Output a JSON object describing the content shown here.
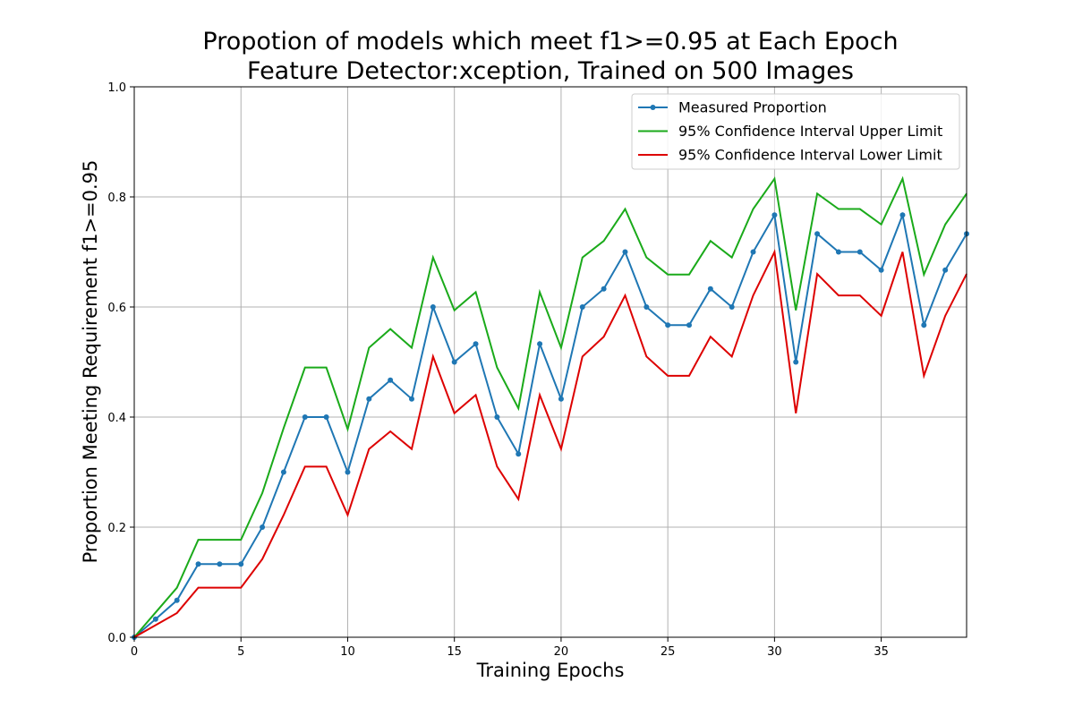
{
  "chart_data": {
    "type": "line",
    "title": "Propotion of models which meet f1>=0.95 at Each Epoch",
    "subtitle": "Feature Detector:xception, Trained on 500 Images",
    "xlabel": "Training Epochs",
    "ylabel": "Proportion Meeting Requirement f1>=0.95",
    "xlim": [
      0,
      39
    ],
    "ylim": [
      0,
      1.0
    ],
    "xticks": [
      0,
      5,
      10,
      15,
      20,
      25,
      30,
      35
    ],
    "xtick_labels": [
      "0",
      "5",
      "10",
      "15",
      "20",
      "25",
      "30",
      "35"
    ],
    "yticks": [
      0.0,
      0.2,
      0.4,
      0.6,
      0.8,
      1.0
    ],
    "ytick_labels": [
      "0.0",
      "0.2",
      "0.4",
      "0.6",
      "0.8",
      "1.0"
    ],
    "grid": true,
    "legend_position": "top-right",
    "x": [
      0,
      1,
      2,
      3,
      4,
      5,
      6,
      7,
      8,
      9,
      10,
      11,
      12,
      13,
      14,
      15,
      16,
      17,
      18,
      19,
      20,
      21,
      22,
      23,
      24,
      25,
      26,
      27,
      28,
      29,
      30,
      31,
      32,
      33,
      34,
      35,
      36,
      37,
      38,
      39
    ],
    "series": [
      {
        "name": "Measured Proportion",
        "color": "#1f77b4",
        "marker": true,
        "values": [
          0.0,
          0.033,
          0.067,
          0.133,
          0.133,
          0.133,
          0.2,
          0.3,
          0.4,
          0.4,
          0.3,
          0.433,
          0.467,
          0.433,
          0.6,
          0.5,
          0.533,
          0.4,
          0.333,
          0.533,
          0.433,
          0.6,
          0.633,
          0.7,
          0.6,
          0.567,
          0.567,
          0.633,
          0.6,
          0.7,
          0.767,
          0.5,
          0.733,
          0.7,
          0.7,
          0.667,
          0.767,
          0.567,
          0.667,
          0.733
        ]
      },
      {
        "name": "95% Confidence Interval Upper Limit",
        "color": "#1aaa1a",
        "marker": false,
        "values": [
          0.0,
          0.045,
          0.09,
          0.177,
          0.177,
          0.177,
          0.262,
          0.38,
          0.49,
          0.49,
          0.378,
          0.526,
          0.56,
          0.526,
          0.69,
          0.594,
          0.627,
          0.49,
          0.416,
          0.627,
          0.526,
          0.69,
          0.72,
          0.778,
          0.69,
          0.659,
          0.659,
          0.72,
          0.69,
          0.778,
          0.833,
          0.594,
          0.806,
          0.778,
          0.778,
          0.75,
          0.833,
          0.659,
          0.75,
          0.806
        ]
      },
      {
        "name": "95% Confidence Interval Lower Limit",
        "color": "#dd0000",
        "marker": false,
        "values": [
          0.0,
          0.022,
          0.044,
          0.09,
          0.09,
          0.09,
          0.142,
          0.222,
          0.31,
          0.31,
          0.222,
          0.342,
          0.374,
          0.342,
          0.51,
          0.407,
          0.44,
          0.31,
          0.251,
          0.44,
          0.342,
          0.51,
          0.546,
          0.621,
          0.51,
          0.475,
          0.475,
          0.546,
          0.51,
          0.621,
          0.7,
          0.407,
          0.66,
          0.621,
          0.621,
          0.584,
          0.7,
          0.475,
          0.584,
          0.66
        ]
      }
    ]
  }
}
